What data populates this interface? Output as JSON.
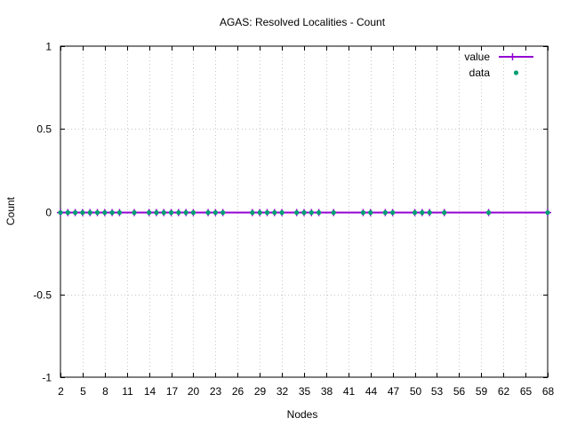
{
  "chart_data": {
    "type": "line",
    "title": "AGAS: Resolved Localities - Count",
    "xlabel": "Nodes",
    "ylabel": "Count",
    "xlim": [
      2,
      68
    ],
    "ylim": [
      -1,
      1
    ],
    "x_ticks": [
      2,
      5,
      8,
      11,
      14,
      17,
      20,
      23,
      26,
      29,
      32,
      35,
      38,
      41,
      44,
      47,
      50,
      53,
      56,
      59,
      62,
      65,
      68
    ],
    "x_tick_labels": [
      "2",
      "5",
      "8",
      "11",
      "14",
      "17",
      "20",
      "23",
      "26",
      "29",
      "32",
      "35",
      "38",
      "41",
      "44",
      "47",
      "50",
      "53",
      "56",
      "59",
      "62",
      "65",
      "68"
    ],
    "y_ticks": [
      -1,
      -0.5,
      0,
      0.5,
      1
    ],
    "y_tick_labels": [
      "-1",
      "-0.5",
      "0",
      "0.5",
      "1"
    ],
    "grid": true,
    "legend_position": "top-right",
    "series": [
      {
        "name": "value",
        "style": "line+cross",
        "color": "#9400d3",
        "x": [
          2,
          3,
          4,
          5,
          6,
          7,
          8,
          9,
          10,
          12,
          14,
          15,
          16,
          17,
          18,
          19,
          20,
          22,
          23,
          24,
          28,
          29,
          30,
          31,
          32,
          34,
          35,
          36,
          37,
          39,
          43,
          44,
          46,
          47,
          50,
          51,
          52,
          54,
          60,
          68
        ],
        "y": [
          0,
          0,
          0,
          0,
          0,
          0,
          0,
          0,
          0,
          0,
          0,
          0,
          0,
          0,
          0,
          0,
          0,
          0,
          0,
          0,
          0,
          0,
          0,
          0,
          0,
          0,
          0,
          0,
          0,
          0,
          0,
          0,
          0,
          0,
          0,
          0,
          0,
          0,
          0,
          0
        ]
      },
      {
        "name": "data",
        "style": "points",
        "color": "#009e73",
        "x": [
          2,
          3,
          4,
          5,
          6,
          7,
          8,
          9,
          10,
          12,
          14,
          15,
          16,
          17,
          18,
          19,
          20,
          22,
          23,
          24,
          28,
          29,
          30,
          31,
          32,
          34,
          35,
          36,
          37,
          39,
          43,
          44,
          46,
          47,
          50,
          51,
          52,
          54,
          60,
          68
        ],
        "y": [
          0,
          0,
          0,
          0,
          0,
          0,
          0,
          0,
          0,
          0,
          0,
          0,
          0,
          0,
          0,
          0,
          0,
          0,
          0,
          0,
          0,
          0,
          0,
          0,
          0,
          0,
          0,
          0,
          0,
          0,
          0,
          0,
          0,
          0,
          0,
          0,
          0,
          0,
          0,
          0
        ]
      }
    ]
  }
}
